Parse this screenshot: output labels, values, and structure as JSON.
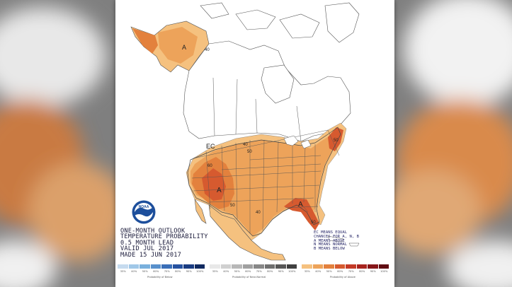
{
  "colors": {
    "page_bg": "#8a8a8a",
    "frame_bg": "#ffffff",
    "above_33": "#f5c17f",
    "above_40": "#eda35a",
    "above_50": "#e3813d",
    "above_60": "#d65a2f",
    "boundary": "#555555",
    "text": "#1a1a3a"
  },
  "map": {
    "regions": [
      {
        "name": "alaska-above",
        "category": "Above",
        "level": "40"
      },
      {
        "name": "western-north-america-above",
        "category": "Above",
        "level": "50"
      },
      {
        "name": "southwest-core-above",
        "category": "Above",
        "level": "60"
      },
      {
        "name": "florida-above",
        "category": "Above",
        "level": "50"
      },
      {
        "name": "northeast-above",
        "category": "Above",
        "level": "50"
      }
    ],
    "labels": {
      "alaska_a": "A",
      "alaska_40": "40",
      "ec": "EC",
      "sw_a": "A",
      "sw_50": "50",
      "sw_60": "60",
      "us_40": "40",
      "us_50": "50",
      "se_a": "A",
      "fl_50": "50",
      "tx_40": "40",
      "ne_50": "50"
    }
  },
  "title_block": {
    "line1": "ONE-MONTH OUTLOOK",
    "line2": "TEMPERATURE PROBABILITY",
    "line3": "0.5 MONTH LEAD",
    "line4": "VALID JUL 2017",
    "line5": "MADE 15 JUN 2017"
  },
  "legend_block": {
    "line1": "EC MEANS EQUAL",
    "line2": "CHANCES FOR A, N, B",
    "line3": "A MEANS ABOVE",
    "line4": "N MEANS NORMAL",
    "line5": "B MEANS BELOW"
  },
  "logo": {
    "text": "NOAA",
    "icon": "noaa-logo-icon"
  },
  "colorbar": {
    "below": {
      "caption": "Probability of Below",
      "ticks": [
        "33%",
        "40%",
        "50%",
        "60%",
        "70%",
        "80%",
        "90%",
        "100%"
      ],
      "colors": [
        "#c6dbef",
        "#a0c8e8",
        "#79b0dd",
        "#5890cc",
        "#3a6fb8",
        "#2652a0",
        "#1a3c82",
        "#102a60"
      ]
    },
    "normal": {
      "caption": "Probability of Near-Normal",
      "ticks": [
        "33%",
        "40%",
        "50%",
        "60%",
        "70%",
        "80%",
        "90%",
        "100%"
      ],
      "colors": [
        "#e8e8e8",
        "#d0d0d0",
        "#b8b8b8",
        "#a0a0a0",
        "#888888",
        "#707070",
        "#585858",
        "#404040"
      ]
    },
    "above": {
      "caption": "Probability of Above",
      "ticks": [
        "33%",
        "40%",
        "50%",
        "60%",
        "70%",
        "80%",
        "90%",
        "100%"
      ],
      "colors": [
        "#f5c17f",
        "#eda35a",
        "#e3813d",
        "#d65a2f",
        "#c43a26",
        "#a8241e",
        "#871619",
        "#600d12"
      ]
    }
  }
}
